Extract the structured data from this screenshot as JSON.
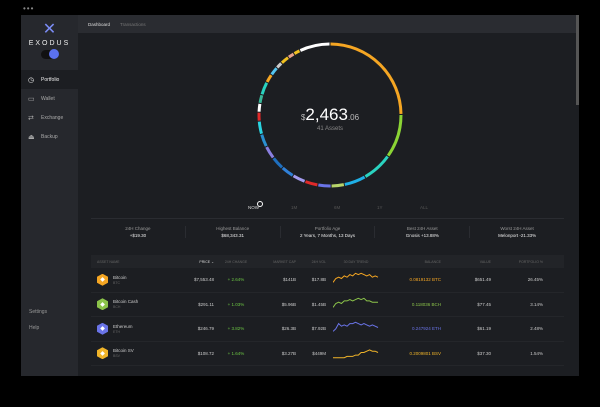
{
  "window_dots": "•••",
  "brand": {
    "name": "EXODUS"
  },
  "sidebar": {
    "items": [
      {
        "label": "Portfolio",
        "icon": "clock-icon"
      },
      {
        "label": "Wallet",
        "icon": "wallet-icon"
      },
      {
        "label": "Exchange",
        "icon": "exchange-icon"
      },
      {
        "label": "Backup",
        "icon": "backup-icon"
      }
    ],
    "footer": [
      "Settings",
      "Help"
    ]
  },
  "tabs": [
    "Dashboard",
    "Transactions"
  ],
  "portfolio": {
    "balance_main": "2,463",
    "balance_cents": ".06",
    "currency": "$",
    "assets": "41 Assets",
    "ring": [
      {
        "color": "#f5a623",
        "share": 25
      },
      {
        "color": "#8bd435",
        "share": 10
      },
      {
        "color": "#2ad3c0",
        "share": 7
      },
      {
        "color": "#1fb0e6",
        "share": 5
      },
      {
        "color": "#b6d46a",
        "share": 3
      },
      {
        "color": "#6a74e8",
        "share": 3
      },
      {
        "color": "#e02a2a",
        "share": 3
      },
      {
        "color": "#a49cf0",
        "share": 3
      },
      {
        "color": "#2f80d8",
        "share": 3
      },
      {
        "color": "#1e6fbf",
        "share": 3
      },
      {
        "color": "#8a7fe0",
        "share": 3
      },
      {
        "color": "#2a8fd0",
        "share": 3
      },
      {
        "color": "#2ad3e0",
        "share": 3
      },
      {
        "color": "#e02a2a",
        "share": 2
      },
      {
        "color": "#ffffff",
        "share": 2
      },
      {
        "color": "#3ab89a",
        "share": 2
      },
      {
        "color": "#2ad3c0",
        "share": 3
      },
      {
        "color": "#f5a623",
        "share": 2
      },
      {
        "color": "#55c6f0",
        "share": 2
      },
      {
        "color": "#cccccc",
        "share": 1.5
      },
      {
        "color": "#f0c020",
        "share": 2
      },
      {
        "color": "#e8a08a",
        "share": 1.5
      },
      {
        "color": "#f0c020",
        "share": 1.5
      },
      {
        "color": "#ffffff",
        "share": 7
      }
    ]
  },
  "timescale": {
    "options": [
      "NOW",
      "1M",
      "6M",
      "1Y",
      "ALL"
    ],
    "selected": "NOW"
  },
  "stats": [
    {
      "label": "24H Change",
      "value": "+$19.30"
    },
    {
      "label": "Highest Balance",
      "value": "$68,343.31"
    },
    {
      "label": "Portfolio Age",
      "value": "2 Years, 7 Months, 13 Days"
    },
    {
      "label": "Best 24H Asset",
      "value": "Gnosis +13.88%"
    },
    {
      "label": "Worst 24H Asset",
      "value": "Melonport -21.33%"
    }
  ],
  "table": {
    "headers": [
      "ASSET NAME",
      "PRICE",
      "24H CHANGE",
      "MARKET CAP",
      "24H VOL",
      "30 DAY TREND",
      "BALANCE",
      "VALUE",
      "PORTFOLIO %"
    ],
    "rows": [
      {
        "name": "Bitcoin",
        "ticker": "BTC",
        "price": "$7,553.48",
        "change": "+ 2.64%",
        "cap": "$141B",
        "vol": "$17.8B",
        "balance": "0.0819132 BTC",
        "value": "$651.49",
        "pct": "26.45%",
        "color": "#f5a623",
        "trend": [
          2,
          5,
          6,
          5,
          7,
          6,
          8,
          7,
          9,
          8,
          9,
          8,
          7,
          8,
          6,
          7,
          6
        ]
      },
      {
        "name": "Bitcoin Cash",
        "ticker": "BCH",
        "price": "$291.11",
        "change": "+ 1.03%",
        "cap": "$5.96B",
        "vol": "$1.45B",
        "balance": "0.118036 BCH",
        "value": "$77.45",
        "pct": "3.14%",
        "color": "#8bc34a",
        "trend": [
          2,
          5,
          6,
          5,
          7,
          7,
          8,
          7,
          8,
          9,
          8,
          9,
          7,
          7,
          6,
          6,
          6
        ]
      },
      {
        "name": "Ethereum",
        "ticker": "ETH",
        "price": "$246.79",
        "change": "+ 3.82%",
        "cap": "$26.3B",
        "vol": "$7.92B",
        "balance": "0.247924 ETH",
        "value": "$61.19",
        "pct": "2.48%",
        "color": "#6a74e8",
        "trend": [
          2,
          4,
          8,
          6,
          7,
          6,
          8,
          8,
          9,
          8,
          7,
          8,
          7,
          6,
          7,
          6,
          5
        ]
      },
      {
        "name": "Bitcoin SV",
        "ticker": "BSV",
        "price": "$108.72",
        "change": "+ 1.64%",
        "cap": "$3.27B",
        "vol": "$449M",
        "balance": "0.2009801 BSV",
        "value": "$37.30",
        "pct": "1.54%",
        "color": "#f0b429",
        "trend": [
          1,
          1,
          1,
          1,
          1,
          2,
          2,
          2,
          3,
          3,
          5,
          5,
          6,
          7,
          6,
          6,
          5
        ]
      }
    ]
  }
}
